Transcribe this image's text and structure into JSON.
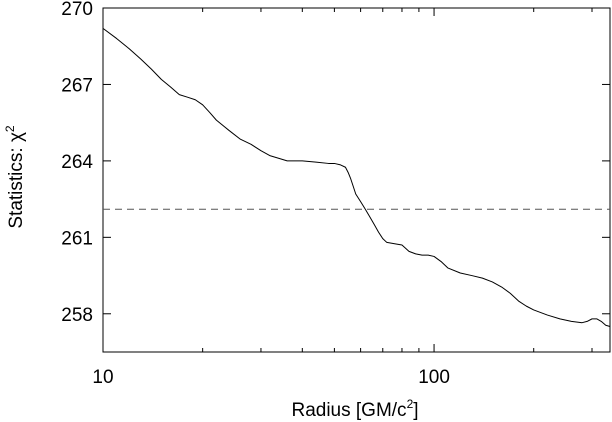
{
  "chart_data": {
    "type": "line",
    "xlabel": "Radius [GM/c",
    "xlabel_sup": "2",
    "xlabel_end": "]",
    "ylabel": "Statistics: χ",
    "ylabel_sup": "2",
    "x_scale": "log",
    "xlim": [
      10,
      340
    ],
    "ylim": [
      256.5,
      270
    ],
    "x_ticks": [
      {
        "value": 10,
        "label": "10"
      },
      {
        "value": 100,
        "label": "100"
      }
    ],
    "y_ticks": [
      {
        "value": 258,
        "label": "258"
      },
      {
        "value": 261,
        "label": "261"
      },
      {
        "value": 264,
        "label": "264"
      },
      {
        "value": 267,
        "label": "267"
      },
      {
        "value": 270,
        "label": "270"
      }
    ],
    "grid": false,
    "legend": "none",
    "reference_line": {
      "y": 262.1,
      "style": "dashed"
    },
    "series": [
      {
        "style": "solid",
        "x": [
          10,
          11,
          12,
          13,
          14,
          15,
          16,
          17,
          18,
          19,
          20,
          21,
          22,
          24,
          26,
          28,
          30,
          32,
          34,
          36,
          38,
          40,
          44,
          48,
          50,
          52,
          54,
          55,
          56,
          57,
          58,
          60,
          62,
          64,
          66,
          68,
          70,
          72,
          76,
          80,
          84,
          88,
          92,
          96,
          100,
          105,
          110,
          120,
          130,
          140,
          150,
          160,
          170,
          180,
          190,
          200,
          220,
          240,
          260,
          280,
          290,
          300,
          310,
          320,
          330,
          340
        ],
        "y": [
          269.2,
          268.8,
          268.4,
          268.0,
          267.6,
          267.2,
          266.9,
          266.6,
          266.5,
          266.4,
          266.2,
          265.9,
          265.6,
          265.2,
          264.85,
          264.65,
          264.4,
          264.2,
          264.1,
          264.0,
          264.0,
          264.0,
          263.95,
          263.9,
          263.9,
          263.85,
          263.75,
          263.55,
          263.3,
          263.0,
          262.7,
          262.4,
          262.1,
          261.8,
          261.5,
          261.2,
          260.95,
          260.8,
          260.75,
          260.7,
          260.45,
          260.35,
          260.3,
          260.3,
          260.25,
          260.05,
          259.8,
          259.6,
          259.5,
          259.4,
          259.25,
          259.05,
          258.8,
          258.5,
          258.3,
          258.15,
          257.95,
          257.8,
          257.7,
          257.65,
          257.7,
          257.8,
          257.8,
          257.7,
          257.55,
          257.5
        ]
      }
    ]
  }
}
